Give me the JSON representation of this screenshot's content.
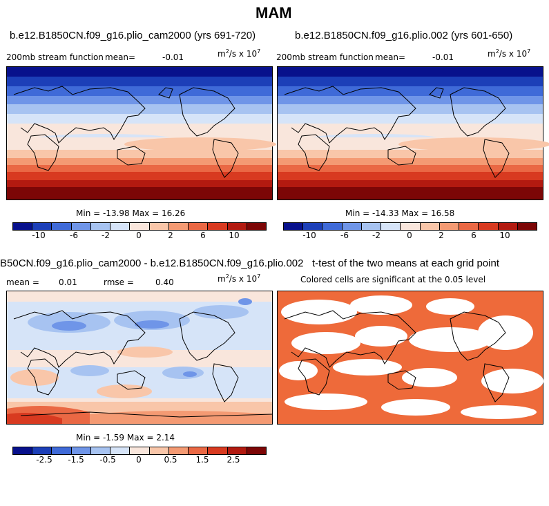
{
  "season_title": "MAM",
  "panels": [
    {
      "title": "b.e12.B1850CN.f09_g16.plio_cam2000 (yrs 691-720)",
      "subtitle": "200mb stream function",
      "mean_label": "mean=",
      "mean_value": "-0.01",
      "units": "m",
      "units_exp": "2",
      "units_tail": "/s x 10",
      "units_exp2": "7",
      "minmax": "Min = -13.98  Max =  16.26"
    },
    {
      "title": "b.e12.B1850CN.f09_g16.plio.002 (yrs 601-650)",
      "subtitle": "200mb stream function",
      "mean_label": "mean=",
      "mean_value": "-0.01",
      "units": "m",
      "units_exp": "2",
      "units_tail": "/s x 10",
      "units_exp2": "7",
      "minmax": "Min = -14.33  Max =  16.58"
    },
    {
      "title": "B50CN.f09_g16.plio_cam2000 - b.e12.B1850CN.f09_g16.plio.002",
      "mean_label": "mean =",
      "mean_value": "0.01",
      "rmse_label": "rmse =",
      "rmse_value": "0.40",
      "units": "m",
      "units_exp": "2",
      "units_tail": "/s x 10",
      "units_exp2": "7",
      "minmax": "Min =  -1.59  Max =   2.14"
    },
    {
      "title": "t-test of the two means at each grid point",
      "subtitle": "Colored cells are significant at the 0.05 level"
    }
  ],
  "colorbar_top": {
    "ticks": [
      "-10",
      "-6",
      "-2",
      "0",
      "2",
      "6",
      "10"
    ],
    "colors": [
      "#08118c",
      "#1c3fb8",
      "#3f6ad8",
      "#6f95e8",
      "#a7c3f1",
      "#d6e4f8",
      "#f9e6dc",
      "#f9c6a9",
      "#f49a73",
      "#ea6844",
      "#d83a20",
      "#b21a10",
      "#7c0606"
    ]
  },
  "colorbar_bottom": {
    "ticks": [
      "-2.5",
      "-1.5",
      "-0.5",
      "0",
      "0.5",
      "1.5",
      "2.5"
    ],
    "colors": [
      "#08118c",
      "#1c3fb8",
      "#3f6ad8",
      "#6f95e8",
      "#a7c3f1",
      "#d6e4f8",
      "#f9e6dc",
      "#f9c6a9",
      "#f49a73",
      "#ea6844",
      "#d83a20",
      "#b21a10",
      "#7c0606"
    ]
  },
  "chart_data": [
    {
      "type": "heatmap",
      "title": "b.e12.B1850CN.f09_g16.plio_cam2000 (yrs 691-720)",
      "variable": "200mb stream function",
      "mean": -0.01,
      "min": -13.98,
      "max": 16.26,
      "colorbar_ticks": [
        -10,
        -6,
        -2,
        0,
        2,
        6,
        10
      ]
    },
    {
      "type": "heatmap",
      "title": "b.e12.B1850CN.f09_g16.plio.002 (yrs 601-650)",
      "variable": "200mb stream function",
      "mean": -0.01,
      "min": -14.33,
      "max": 16.58,
      "colorbar_ticks": [
        -10,
        -6,
        -2,
        0,
        2,
        6,
        10
      ]
    },
    {
      "type": "heatmap",
      "title": "B50CN.f09_g16.plio_cam2000 - b.e12.B1850CN.f09_g16.plio.002",
      "mean": 0.01,
      "rmse": 0.4,
      "min": -1.59,
      "max": 2.14,
      "colorbar_ticks": [
        -2.5,
        -1.5,
        -0.5,
        0,
        0.5,
        1.5,
        2.5
      ]
    },
    {
      "type": "heatmap",
      "title": "t-test of the two means at each grid point",
      "subtitle": "Colored cells are significant at the 0.05 level",
      "significance_level": 0.05,
      "significant_color": "#ee6a3a"
    }
  ]
}
